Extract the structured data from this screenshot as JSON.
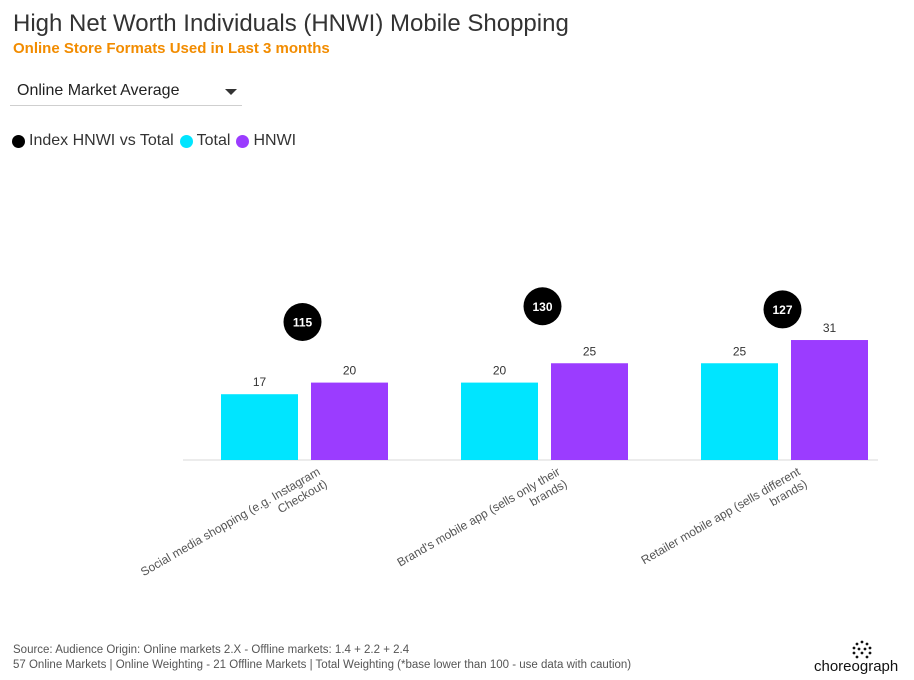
{
  "title": "High Net Worth Individuals (HNWI) Mobile Shopping",
  "subtitle": "Online Store Formats Used in Last 3 months",
  "dropdown": {
    "selected": "Online Market Average"
  },
  "colors": {
    "total": "#00e5ff",
    "hnwi": "#9b3cff",
    "index": "#000000",
    "subtitle": "#f28c00"
  },
  "chart_data": {
    "type": "bar",
    "categories": [
      "Social media shopping (e.g. Instagram Checkout)",
      "Brand's mobile app (sells only their brands)",
      "Retailer mobile app (sells different brands)"
    ],
    "category_lines": [
      [
        "Social media shopping (e.g. Instagram",
        "Checkout)"
      ],
      [
        "Brand's mobile app (sells only their",
        "brands)"
      ],
      [
        "Retailer mobile app (sells different",
        "brands)"
      ]
    ],
    "series": [
      {
        "name": "Index HNWI vs Total",
        "values": [
          115,
          130,
          127
        ],
        "color": "#000000",
        "marker": "circle"
      },
      {
        "name": "Total",
        "values": [
          17,
          20,
          25
        ],
        "color": "#00e5ff"
      },
      {
        "name": "HNWI",
        "values": [
          20,
          25,
          31
        ],
        "color": "#9b3cff"
      }
    ],
    "legend": "top-left",
    "grid": false
  },
  "source": [
    "Source: Audience Origin: Online markets 2.X - Offline markets: 1.4 + 2.2 + 2.4",
    "57 Online Markets | Online Weighting - 21 Offline Markets | Total Weighting (*base lower than 100 - use data with caution)"
  ],
  "logo": {
    "text": "choreograph"
  }
}
